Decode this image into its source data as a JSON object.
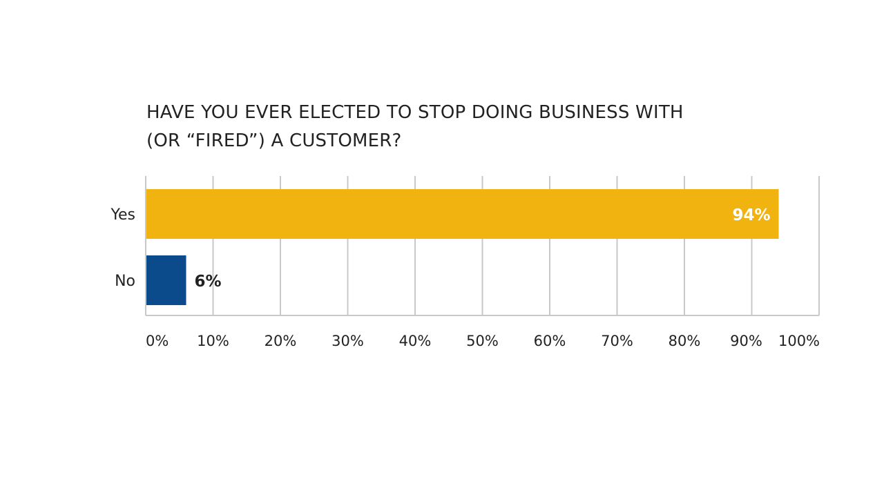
{
  "chart_data": {
    "type": "bar",
    "orientation": "horizontal",
    "title_lines": [
      "HAVE YOU EVER ELECTED TO STOP DOING BUSINESS WITH",
      "(OR “FIRED”) A CUSTOMER?"
    ],
    "categories": [
      "Yes",
      "No"
    ],
    "values": [
      94,
      6
    ],
    "value_labels": [
      "94%",
      "6%"
    ],
    "bar_colors": [
      "#F0B310",
      "#0B4A8B"
    ],
    "value_label_colors": [
      "#FFFFFF",
      "#222222"
    ],
    "value_label_positions": [
      "inside-end",
      "outside-end"
    ],
    "xlim": [
      0,
      100
    ],
    "x_ticks": [
      0,
      10,
      20,
      30,
      40,
      50,
      60,
      70,
      80,
      90,
      100
    ],
    "x_tick_labels": [
      "0%",
      "10%",
      "20%",
      "30%",
      "40%",
      "50%",
      "60%",
      "70%",
      "80%",
      "90%",
      "100%"
    ],
    "grid": true,
    "grid_color": "#C8C8C8",
    "text_color": "#222222",
    "legend": "none",
    "xlabel": "",
    "ylabel": ""
  }
}
